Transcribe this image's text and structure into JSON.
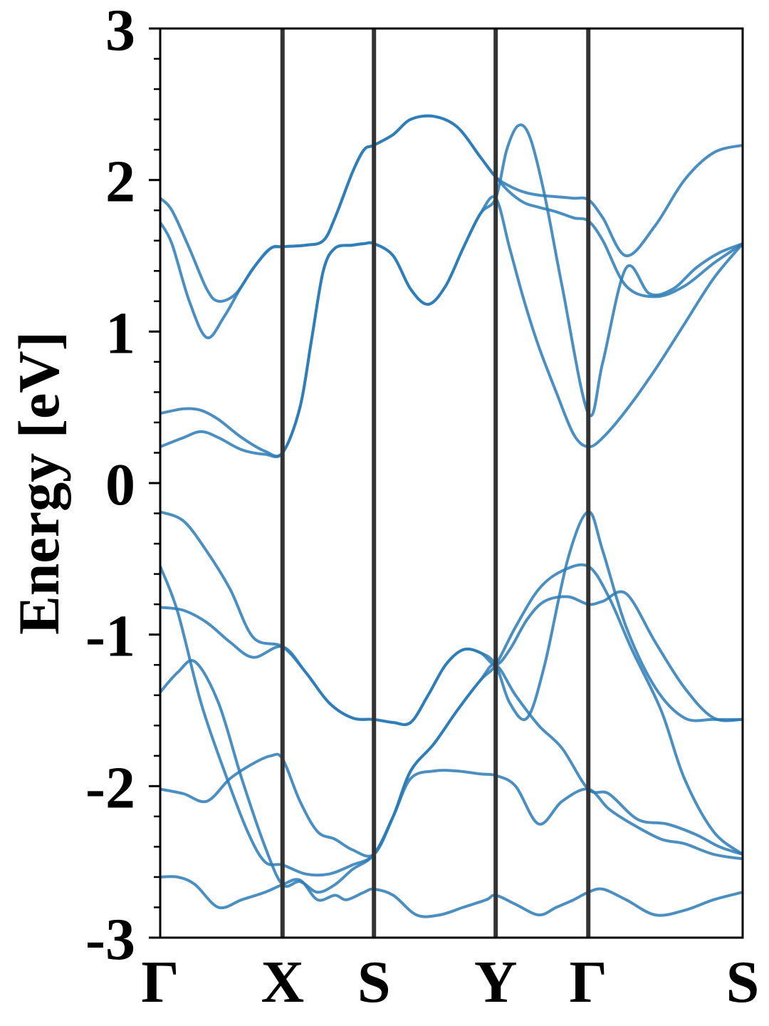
{
  "chart_data": {
    "type": "line",
    "title": "",
    "xlabel": "",
    "ylabel": "Energy [eV]",
    "ylim": [
      -3,
      3
    ],
    "yticks": [
      "3",
      "2",
      "1",
      "0",
      "-1",
      "-2",
      "-3"
    ],
    "high_symmetry_points": [
      {
        "label": "Γ",
        "k": 0.0
      },
      {
        "label": "X",
        "k": 0.21
      },
      {
        "label": "S",
        "k": 0.367
      },
      {
        "label": "Y",
        "k": 0.576
      },
      {
        "label": "Γ",
        "k": 0.735
      },
      {
        "label": "S",
        "k": 1.0
      }
    ],
    "grid": false,
    "colors": {
      "bands": "#2c7bb6",
      "kpath_lines": "#333333",
      "axes": "#000000"
    },
    "series": [
      {
        "x": [
          0,
          0.02,
          0.05,
          0.08,
          0.1,
          0.13,
          0.16,
          0.19,
          0.21,
          0.25,
          0.28,
          0.3,
          0.33,
          0.35,
          0.367,
          0.4,
          0.43,
          0.47,
          0.51,
          0.55,
          0.576,
          0.6,
          0.625,
          0.65,
          0.68,
          0.71,
          0.735,
          0.76,
          0.8,
          0.85,
          0.9,
          0.95,
          1.0
        ],
        "y": [
          1.88,
          1.8,
          1.55,
          1.28,
          1.2,
          1.25,
          1.42,
          1.55,
          1.56,
          1.57,
          1.6,
          1.75,
          2.05,
          2.2,
          2.23,
          2.3,
          2.4,
          2.42,
          2.35,
          2.15,
          2.02,
          1.92,
          1.85,
          1.82,
          1.79,
          1.75,
          1.73,
          1.6,
          1.3,
          1.23,
          1.3,
          1.45,
          1.58
        ]
      },
      {
        "x": [
          0,
          0.02,
          0.05,
          0.08,
          0.11,
          0.14,
          0.17,
          0.19,
          0.21,
          0.25,
          0.28,
          0.3,
          0.33,
          0.35,
          0.367,
          0.4,
          0.43,
          0.47,
          0.51,
          0.55,
          0.576,
          0.6,
          0.625,
          0.65,
          0.68,
          0.71,
          0.735,
          0.76,
          0.8,
          0.85,
          0.9,
          0.95,
          1.0
        ],
        "y": [
          1.72,
          1.58,
          1.2,
          0.96,
          1.1,
          1.3,
          1.47,
          1.55,
          1.56,
          1.57,
          1.6,
          1.75,
          2.05,
          2.2,
          2.23,
          2.3,
          2.4,
          2.42,
          2.35,
          2.15,
          2.02,
          1.96,
          1.92,
          1.9,
          1.89,
          1.88,
          1.87,
          1.75,
          1.5,
          1.7,
          2.0,
          2.18,
          2.23
        ]
      },
      {
        "x": [
          0,
          0.04,
          0.07,
          0.1,
          0.14,
          0.18,
          0.21,
          0.24,
          0.26,
          0.28,
          0.3,
          0.33,
          0.35,
          0.367,
          0.4,
          0.43,
          0.46,
          0.49,
          0.52,
          0.55,
          0.576,
          0.6,
          0.625,
          0.65,
          0.68,
          0.71,
          0.735,
          0.76,
          0.8,
          0.85,
          0.9,
          0.95,
          1.0
        ],
        "y": [
          0.24,
          0.3,
          0.34,
          0.3,
          0.22,
          0.19,
          0.2,
          0.5,
          0.95,
          1.4,
          1.55,
          1.57,
          1.58,
          1.58,
          1.5,
          1.28,
          1.18,
          1.3,
          1.55,
          1.78,
          1.88,
          1.55,
          1.2,
          0.9,
          0.6,
          0.32,
          0.24,
          0.3,
          0.48,
          0.75,
          1.05,
          1.35,
          1.58
        ]
      },
      {
        "x": [
          0,
          0.04,
          0.07,
          0.1,
          0.14,
          0.18,
          0.21,
          0.24,
          0.26,
          0.28,
          0.3,
          0.33,
          0.35,
          0.367,
          0.4,
          0.43,
          0.46,
          0.49,
          0.52,
          0.55,
          0.576,
          0.595,
          0.615,
          0.635,
          0.66,
          0.69,
          0.735,
          0.76,
          0.8,
          0.84,
          0.88,
          0.92,
          0.96,
          1.0
        ],
        "y": [
          0.46,
          0.49,
          0.48,
          0.42,
          0.3,
          0.21,
          0.2,
          0.5,
          0.95,
          1.4,
          1.55,
          1.57,
          1.58,
          1.58,
          1.5,
          1.28,
          1.18,
          1.3,
          1.55,
          1.78,
          1.88,
          2.2,
          2.36,
          2.28,
          1.9,
          1.3,
          0.46,
          0.8,
          1.42,
          1.25,
          1.28,
          1.42,
          1.52,
          1.58
        ]
      },
      {
        "x": [
          0,
          0.04,
          0.08,
          0.12,
          0.16,
          0.21,
          0.25,
          0.29,
          0.33,
          0.367,
          0.4,
          0.43,
          0.46,
          0.49,
          0.52,
          0.55,
          0.576,
          0.6,
          0.63,
          0.66,
          0.7,
          0.735,
          0.76,
          0.8,
          0.85,
          0.9,
          0.95,
          1.0
        ],
        "y": [
          -0.19,
          -0.25,
          -0.45,
          -0.7,
          -1.02,
          -1.08,
          -1.25,
          -1.45,
          -1.55,
          -1.56,
          -1.58,
          -1.58,
          -1.4,
          -1.2,
          -1.1,
          -1.12,
          -1.2,
          -1.1,
          -0.9,
          -0.78,
          -0.75,
          -0.8,
          -0.78,
          -0.73,
          -1.05,
          -1.35,
          -1.55,
          -1.56
        ]
      },
      {
        "x": [
          0,
          0.04,
          0.08,
          0.12,
          0.16,
          0.21,
          0.25,
          0.29,
          0.33,
          0.367,
          0.4,
          0.43,
          0.46,
          0.49,
          0.52,
          0.55,
          0.576,
          0.6,
          0.63,
          0.66,
          0.7,
          0.735,
          0.76,
          0.8,
          0.85,
          0.9,
          0.95,
          1.0
        ],
        "y": [
          -0.82,
          -0.84,
          -0.92,
          -1.05,
          -1.15,
          -1.08,
          -1.25,
          -1.45,
          -1.55,
          -1.56,
          -1.58,
          -1.58,
          -1.4,
          -1.2,
          -1.1,
          -1.12,
          -1.2,
          -1.45,
          -1.55,
          -1.2,
          -0.5,
          -0.19,
          -0.45,
          -0.95,
          -1.35,
          -1.55,
          -1.56,
          -1.56
        ]
      },
      {
        "x": [
          0,
          0.03,
          0.07,
          0.11,
          0.15,
          0.18,
          0.21,
          0.25,
          0.29,
          0.33,
          0.367,
          0.4,
          0.43,
          0.47,
          0.51,
          0.55,
          0.576,
          0.61,
          0.65,
          0.69,
          0.735,
          0.77,
          0.81,
          0.86,
          0.9,
          0.95,
          1.0
        ],
        "y": [
          -0.55,
          -0.85,
          -1.45,
          -1.9,
          -2.3,
          -2.5,
          -2.52,
          -2.58,
          -2.58,
          -2.52,
          -2.45,
          -2.2,
          -1.95,
          -1.9,
          -1.9,
          -1.92,
          -1.93,
          -2.0,
          -2.25,
          -2.1,
          -2.02,
          -2.15,
          -2.25,
          -2.35,
          -2.38,
          -2.45,
          -2.48
        ]
      },
      {
        "x": [
          0,
          0.03,
          0.06,
          0.1,
          0.14,
          0.18,
          0.21,
          0.24,
          0.27,
          0.3,
          0.33,
          0.367,
          0.4,
          0.43,
          0.47,
          0.51,
          0.55,
          0.576,
          0.61,
          0.65,
          0.69,
          0.735,
          0.77,
          0.81,
          0.86,
          0.9,
          0.95,
          1.0
        ],
        "y": [
          -1.38,
          -1.25,
          -1.18,
          -1.45,
          -1.95,
          -2.4,
          -2.65,
          -2.63,
          -2.7,
          -2.65,
          -2.55,
          -2.45,
          -2.2,
          -1.9,
          -1.72,
          -1.5,
          -1.3,
          -1.2,
          -0.95,
          -0.7,
          -0.58,
          -0.55,
          -0.75,
          -1.1,
          -1.5,
          -1.95,
          -2.3,
          -2.45
        ]
      },
      {
        "x": [
          0,
          0.04,
          0.08,
          0.12,
          0.16,
          0.19,
          0.21,
          0.24,
          0.27,
          0.3,
          0.33,
          0.367,
          0.4,
          0.43,
          0.47,
          0.51,
          0.55,
          0.576,
          0.61,
          0.65,
          0.69,
          0.735,
          0.77,
          0.82,
          0.87,
          0.92,
          0.96,
          1.0
        ],
        "y": [
          -2.02,
          -2.05,
          -2.1,
          -1.95,
          -1.85,
          -1.8,
          -1.82,
          -2.1,
          -2.3,
          -2.35,
          -2.42,
          -2.45,
          -2.2,
          -1.9,
          -1.72,
          -1.5,
          -1.3,
          -1.2,
          -1.4,
          -1.6,
          -1.75,
          -2.02,
          -2.05,
          -2.22,
          -2.25,
          -2.32,
          -2.4,
          -2.45
        ]
      },
      {
        "x": [
          0,
          0.03,
          0.06,
          0.1,
          0.14,
          0.18,
          0.21,
          0.24,
          0.27,
          0.3,
          0.32,
          0.35,
          0.367,
          0.4,
          0.44,
          0.48,
          0.52,
          0.56,
          0.576,
          0.61,
          0.65,
          0.68,
          0.71,
          0.735,
          0.76,
          0.8,
          0.85,
          0.9,
          0.95,
          1.0
        ],
        "y": [
          -2.6,
          -2.6,
          -2.65,
          -2.8,
          -2.75,
          -2.7,
          -2.65,
          -2.62,
          -2.75,
          -2.72,
          -2.75,
          -2.7,
          -2.68,
          -2.72,
          -2.85,
          -2.85,
          -2.8,
          -2.75,
          -2.72,
          -2.78,
          -2.85,
          -2.8,
          -2.75,
          -2.7,
          -2.68,
          -2.75,
          -2.85,
          -2.82,
          -2.75,
          -2.7
        ]
      }
    ]
  }
}
